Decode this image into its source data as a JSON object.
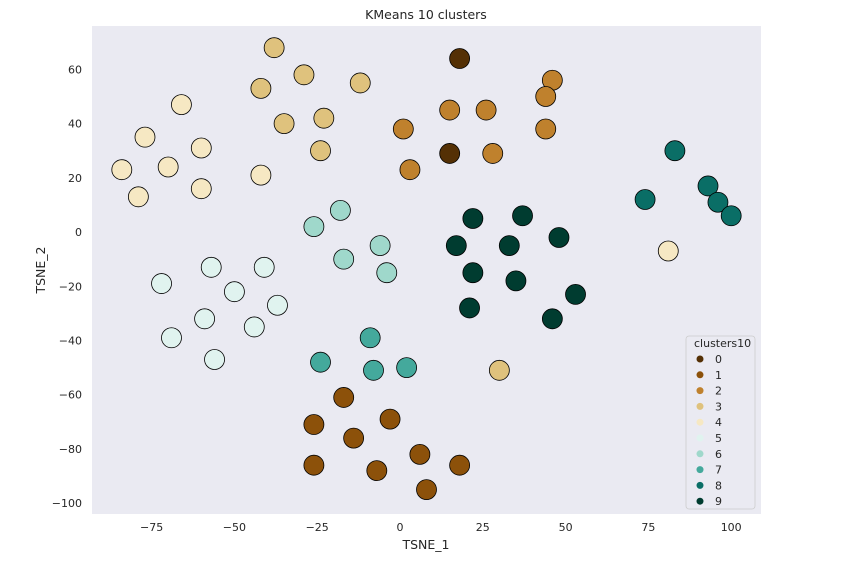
{
  "chart_data": {
    "type": "scatter",
    "title": "KMeans 10 clusters",
    "xlabel": "TSNE_1",
    "ylabel": "TSNE_2",
    "xlim": [
      -93,
      109
    ],
    "ylim": [
      -104,
      76
    ],
    "xticks": [
      -75,
      -50,
      -25,
      0,
      25,
      50,
      75,
      100
    ],
    "yticks": [
      -100,
      -80,
      -60,
      -40,
      -20,
      0,
      20,
      40,
      60
    ],
    "grid": false,
    "legend": {
      "title": "clusters10",
      "placement": "bottom-right"
    },
    "series": [
      {
        "name": "0",
        "color": "#543005",
        "points": [
          [
            18,
            64
          ],
          [
            15,
            29
          ]
        ]
      },
      {
        "name": "1",
        "color": "#8c510a",
        "points": [
          [
            -17,
            -61
          ],
          [
            -26,
            -71
          ],
          [
            -14,
            -76
          ],
          [
            -3,
            -69
          ],
          [
            6,
            -82
          ],
          [
            -26,
            -86
          ],
          [
            -7,
            -88
          ],
          [
            18,
            -86
          ],
          [
            8,
            -95
          ]
        ]
      },
      {
        "name": "2",
        "color": "#bf812d",
        "points": [
          [
            46,
            56
          ],
          [
            15,
            45
          ],
          [
            26,
            45
          ],
          [
            44,
            50
          ],
          [
            1,
            38
          ],
          [
            44,
            38
          ],
          [
            28,
            29
          ],
          [
            3,
            23
          ]
        ]
      },
      {
        "name": "3",
        "color": "#dfc27d",
        "points": [
          [
            -38,
            68
          ],
          [
            -29,
            58
          ],
          [
            -42,
            53
          ],
          [
            -12,
            55
          ],
          [
            -35,
            40
          ],
          [
            -23,
            42
          ],
          [
            -24,
            30
          ],
          [
            30,
            -51
          ]
        ]
      },
      {
        "name": "4",
        "color": "#f6e8c3",
        "points": [
          [
            -66,
            47
          ],
          [
            -77,
            35
          ],
          [
            -60,
            31
          ],
          [
            -84,
            23
          ],
          [
            -70,
            24
          ],
          [
            -42,
            21
          ],
          [
            -60,
            16
          ],
          [
            -79,
            13
          ],
          [
            81,
            -7
          ]
        ]
      },
      {
        "name": "5",
        "color": "#e0f3ef",
        "points": [
          [
            -57,
            -13
          ],
          [
            -41,
            -13
          ],
          [
            -72,
            -19
          ],
          [
            -50,
            -22
          ],
          [
            -37,
            -27
          ],
          [
            -59,
            -32
          ],
          [
            -44,
            -35
          ],
          [
            -69,
            -39
          ],
          [
            -56,
            -47
          ]
        ]
      },
      {
        "name": "6",
        "color": "#9fd8cb",
        "points": [
          [
            -26,
            2
          ],
          [
            -18,
            8
          ],
          [
            -6,
            -5
          ],
          [
            -17,
            -10
          ],
          [
            -4,
            -15
          ]
        ]
      },
      {
        "name": "7",
        "color": "#44a99c",
        "points": [
          [
            -9,
            -39
          ],
          [
            -24,
            -48
          ],
          [
            -8,
            -51
          ],
          [
            2,
            -50
          ]
        ]
      },
      {
        "name": "8",
        "color": "#0a6e66",
        "points": [
          [
            83,
            30
          ],
          [
            74,
            12
          ],
          [
            93,
            17
          ],
          [
            96,
            11
          ],
          [
            100,
            6
          ]
        ]
      },
      {
        "name": "9",
        "color": "#003c30",
        "points": [
          [
            22,
            5
          ],
          [
            37,
            6
          ],
          [
            17,
            -5
          ],
          [
            33,
            -5
          ],
          [
            48,
            -2
          ],
          [
            22,
            -15
          ],
          [
            35,
            -18
          ],
          [
            21,
            -28
          ],
          [
            53,
            -23
          ],
          [
            46,
            -32
          ]
        ]
      }
    ]
  }
}
